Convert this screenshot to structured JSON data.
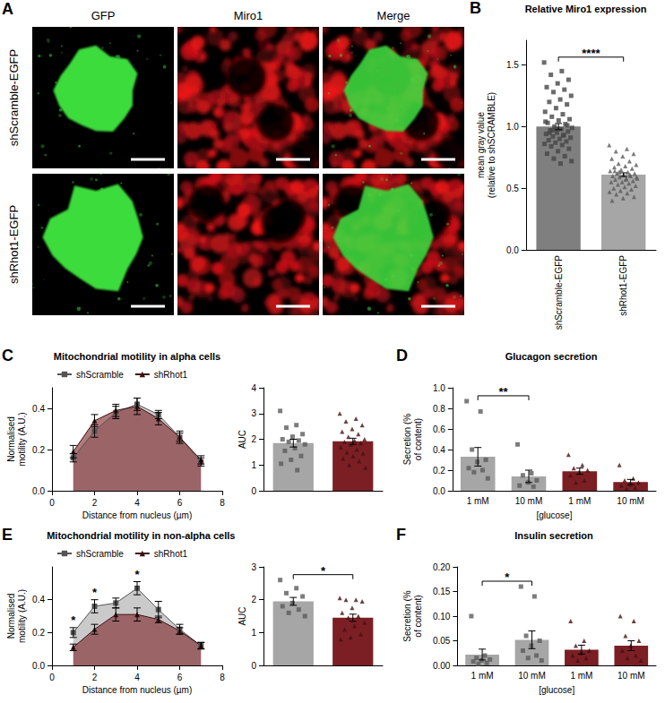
{
  "image_panel": {
    "panel": "A",
    "columns": [
      "GFP",
      "Miro1",
      "Merge"
    ],
    "rows": [
      "shScramble-EGFP",
      "shRhot1-EGFP"
    ]
  },
  "chart_data": [
    {
      "type": "bar",
      "panel": "B",
      "title": "Relative Miro1 expression",
      "y_label": "mean gray value (relative to shSCRAMBLE)",
      "categories": [
        "shScramble-EGFP",
        "shRhot1-EGFP"
      ],
      "ylim": [
        0,
        1.7
      ],
      "yticks": [
        {
          "value": 0,
          "label": "0.0"
        },
        0.5,
        {
          "value": 1,
          "label": "1.0"
        },
        1.5
      ],
      "series": [
        {
          "color": "#7f7f7f",
          "marker": "square",
          "values": [
            1.0,
            null
          ],
          "errors": [
            0.025,
            null
          ],
          "points": [
            [
              1.52,
              1.45,
              1.42,
              1.38,
              1.35,
              1.32,
              1.3,
              1.28,
              1.25,
              1.22,
              1.2,
              1.18,
              1.15,
              1.12,
              1.1,
              1.08,
              1.06,
              1.05,
              1.03,
              1.02,
              1.0,
              0.99,
              0.98,
              0.97,
              0.96,
              0.95,
              0.94,
              0.93,
              0.92,
              0.91,
              0.9,
              0.89,
              0.88,
              0.87,
              0.86,
              0.85,
              0.84,
              0.82,
              0.8,
              0.78,
              0.76,
              0.74,
              0.72,
              0.7,
              0.95,
              1.01,
              0.98,
              1.04,
              0.93,
              0.97
            ],
            null
          ]
        },
        {
          "color": "#a6a6a6",
          "marker": "triangle",
          "values": [
            null,
            0.61
          ],
          "errors": [
            null,
            0.015
          ],
          "points": [
            null,
            [
              0.85,
              0.82,
              0.8,
              0.78,
              0.76,
              0.74,
              0.72,
              0.7,
              0.69,
              0.68,
              0.67,
              0.66,
              0.65,
              0.64,
              0.63,
              0.62,
              0.62,
              0.61,
              0.6,
              0.6,
              0.59,
              0.58,
              0.58,
              0.57,
              0.56,
              0.55,
              0.55,
              0.54,
              0.53,
              0.52,
              0.51,
              0.5,
              0.49,
              0.48,
              0.47,
              0.46,
              0.45,
              0.43,
              0.42,
              0.4,
              0.61,
              0.63,
              0.59,
              0.57,
              0.64
            ]
          ]
        }
      ],
      "annotations": [
        {
          "text": "****",
          "between": [
            0,
            1
          ]
        }
      ]
    },
    {
      "type": "line",
      "panel": "C",
      "title": "Mitochondrial motility in alpha cells",
      "x_label": "Distance from nucleus (µm)",
      "y_label": "Normalised motility (A.U.)",
      "x": [
        1,
        2,
        3,
        4,
        5,
        6,
        7
      ],
      "xlim": [
        0,
        8
      ],
      "xticks": [
        0,
        2,
        4,
        6,
        8
      ],
      "ylim": [
        0,
        0.5
      ],
      "yticks": [
        {
          "value": 0,
          "label": "0.0"
        },
        0.2,
        0.4
      ],
      "legend": "top",
      "series": [
        {
          "name": "shScramble",
          "color": "#a6a6a6",
          "marker": "square",
          "values": [
            0.16,
            0.29,
            0.38,
            0.42,
            0.37,
            0.26,
            0.14
          ],
          "errors": [
            0.02,
            0.03,
            0.03,
            0.03,
            0.02,
            0.02,
            0.02
          ]
        },
        {
          "name": "shRhot1",
          "color": "#7b1f24",
          "marker": "triangle",
          "values": [
            0.19,
            0.34,
            0.39,
            0.41,
            0.35,
            0.26,
            0.15
          ],
          "errors": [
            0.03,
            0.03,
            0.03,
            0.04,
            0.03,
            0.03,
            0.02
          ]
        }
      ],
      "annotations": []
    },
    {
      "type": "bar",
      "y_label": "AUC",
      "categories": [
        null,
        null
      ],
      "ylim": [
        0,
        4
      ],
      "yticks": [
        0,
        1,
        2,
        3,
        4
      ],
      "series": [
        {
          "color": "#a6a6a6",
          "marker": "square",
          "values": [
            1.85,
            null
          ],
          "errors": [
            0.15,
            null
          ],
          "points": [
            [
              3.1,
              2.55,
              2.45,
              2.2,
              2.1,
              2.0,
              1.95,
              1.9,
              1.8,
              1.65,
              1.55,
              1.35,
              1.2,
              1.05,
              0.8
            ],
            null
          ]
        },
        {
          "color": "#7b1f24",
          "marker": "triangle",
          "values": [
            null,
            1.92
          ],
          "errors": [
            null,
            0.12
          ],
          "points": [
            null,
            [
              3.0,
              2.8,
              2.7,
              2.55,
              2.4,
              2.3,
              2.2,
              2.1,
              2.0,
              1.95,
              1.9,
              1.85,
              1.8,
              1.7,
              1.6,
              1.5,
              1.45,
              1.35,
              1.25,
              1.15,
              1.0,
              0.9
            ]
          ]
        }
      ],
      "annotations": []
    },
    {
      "type": "bar",
      "panel": "D",
      "title": "Glucagon secretion",
      "x_label": "[glucose]",
      "y_label": "Secretion (% of content)",
      "categories": [
        "1 mM",
        "10 mM",
        "1 mM",
        "10 mM"
      ],
      "ylim": [
        0,
        1
      ],
      "yticks": [
        {
          "value": 0,
          "label": "0.0"
        },
        0.2,
        0.4,
        0.6,
        0.8,
        {
          "value": 1,
          "label": "1.0"
        }
      ],
      "series": [
        {
          "color": "#a6a6a6",
          "marker": "square",
          "values": [
            0.33,
            0.14,
            null,
            null
          ],
          "errors": [
            0.09,
            0.06,
            null,
            null
          ],
          "points": [
            [
              0.87,
              0.77,
              0.4,
              0.3,
              0.28,
              0.22,
              0.2,
              0.18,
              0.12
            ],
            [
              0.45,
              0.17,
              0.15,
              0.1,
              0.08,
              0.05,
              0.04
            ],
            null,
            null
          ]
        },
        {
          "color": "#7b1f24",
          "marker": "triangle",
          "values": [
            null,
            null,
            0.19,
            0.085
          ],
          "errors": [
            null,
            null,
            0.03,
            0.025
          ],
          "points": [
            null,
            null,
            [
              0.35,
              0.25,
              0.22,
              0.2,
              0.18,
              0.15,
              0.1,
              0.08
            ],
            [
              0.25,
              0.12,
              0.1,
              0.08,
              0.06,
              0.05,
              0.03,
              0.02
            ]
          ]
        }
      ],
      "annotations": [
        {
          "text": "**",
          "between": [
            0,
            1
          ]
        }
      ]
    },
    {
      "type": "line",
      "panel": "E",
      "title": "Mitochondrial motility in non-alpha cells",
      "x_label": "Distance from nucleus (µm)",
      "y_label": "Normalised motility (A.U.)",
      "x": [
        1,
        2,
        3,
        4,
        5,
        6,
        7
      ],
      "xlim": [
        0,
        8
      ],
      "xticks": [
        0,
        2,
        4,
        6,
        8
      ],
      "ylim": [
        0,
        0.6
      ],
      "yticks": [
        {
          "value": 0,
          "label": "0.0"
        },
        0.2,
        0.4
      ],
      "legend": "top",
      "series": [
        {
          "name": "shScramble",
          "color": "#a6a6a6",
          "marker": "square",
          "values": [
            0.2,
            0.36,
            0.38,
            0.47,
            0.34,
            0.22,
            0.12
          ],
          "errors": [
            0.03,
            0.04,
            0.03,
            0.04,
            0.05,
            0.03,
            0.02
          ]
        },
        {
          "name": "shRhot1",
          "color": "#7b1f24",
          "marker": "triangle",
          "values": [
            0.11,
            0.22,
            0.31,
            0.31,
            0.28,
            0.21,
            0.12
          ],
          "errors": [
            0.02,
            0.03,
            0.04,
            0.04,
            0.02,
            0.02,
            0.02
          ]
        }
      ],
      "annotations": [
        {
          "text": "*",
          "x": 1
        },
        {
          "text": "*",
          "x": 2
        },
        {
          "text": "*",
          "x": 4
        }
      ]
    },
    {
      "type": "bar",
      "y_label": "AUC",
      "categories": [
        null,
        null
      ],
      "ylim": [
        0,
        3
      ],
      "yticks": [
        0,
        1,
        2,
        3
      ],
      "series": [
        {
          "color": "#a6a6a6",
          "marker": "square",
          "values": [
            1.95,
            null
          ],
          "errors": [
            0.12,
            null
          ],
          "points": [
            [
              2.6,
              2.35,
              2.2,
              2.1,
              1.9,
              1.8,
              1.7,
              1.6,
              1.5
            ],
            null
          ]
        },
        {
          "color": "#7b1f24",
          "marker": "triangle",
          "values": [
            null,
            1.45
          ],
          "errors": [
            null,
            0.11
          ],
          "points": [
            null,
            [
              2.05,
              2.0,
              2.0,
              1.95,
              1.75,
              1.6,
              1.5,
              1.45,
              1.3,
              1.2,
              1.1,
              0.95,
              0.85,
              0.8
            ]
          ]
        }
      ],
      "annotations": [
        {
          "text": "*",
          "between": [
            0,
            1
          ]
        }
      ]
    },
    {
      "type": "bar",
      "panel": "F",
      "title": "Insulin secretion",
      "x_label": "[glucose]",
      "y_label": "Secretion (% of content)",
      "categories": [
        "1 mM",
        "10 mM",
        "1 mM",
        "10 mM"
      ],
      "ylim": [
        0,
        0.2
      ],
      "yticks": [
        {
          "value": 0,
          "label": "0.00"
        },
        0.05,
        {
          "value": 0.1,
          "label": "0.10"
        },
        0.15,
        {
          "value": 0.2,
          "label": "0.20"
        }
      ],
      "series": [
        {
          "color": "#a6a6a6",
          "marker": "square",
          "values": [
            0.022,
            0.052,
            null,
            null
          ],
          "errors": [
            0.011,
            0.018,
            null,
            null
          ],
          "points": [
            [
              0.1,
              0.02,
              0.015,
              0.012,
              0.01,
              0.008,
              0.005,
              0.003
            ],
            [
              0.16,
              0.14,
              0.06,
              0.05,
              0.04,
              0.03,
              0.02,
              0.015,
              0.01
            ],
            null,
            null
          ]
        },
        {
          "color": "#7b1f24",
          "marker": "triangle",
          "values": [
            null,
            null,
            0.032,
            0.04
          ],
          "errors": [
            null,
            null,
            0.009,
            0.01
          ],
          "points": [
            null,
            null,
            [
              0.09,
              0.05,
              0.04,
              0.03,
              0.025,
              0.02,
              0.015,
              0.01
            ],
            [
              0.1,
              0.09,
              0.06,
              0.05,
              0.04,
              0.03,
              0.02,
              0.015,
              0.01
            ]
          ]
        }
      ],
      "annotations": [
        {
          "text": "*",
          "between": [
            0,
            1
          ]
        }
      ]
    }
  ]
}
